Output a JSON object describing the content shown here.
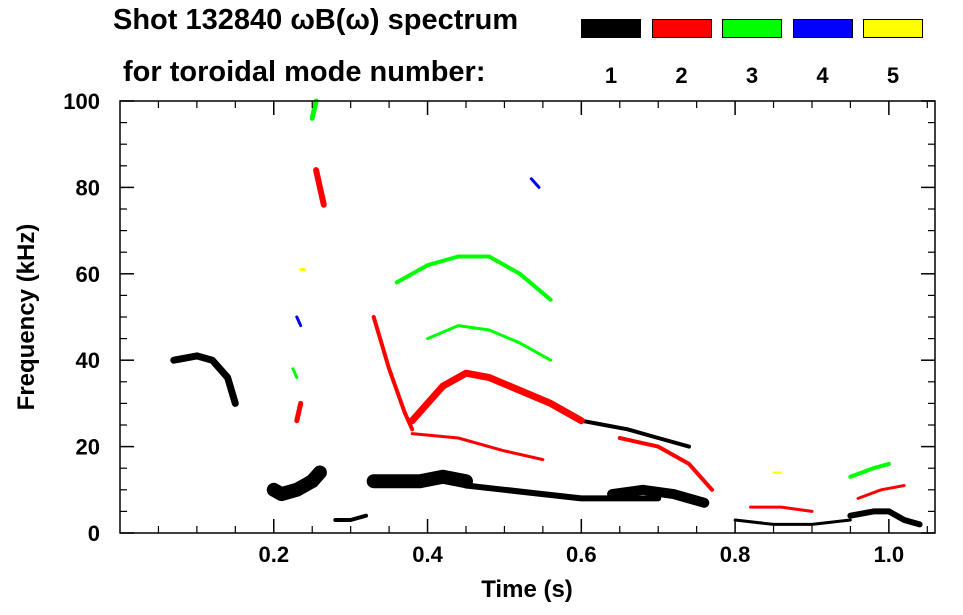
{
  "chart_data": {
    "type": "heatmap",
    "title_line1": "Shot 132840 ωB(ω) spectrum",
    "title_line2": "for toroidal mode number:",
    "xlabel": "Time (s)",
    "ylabel": "Frequency (kHz)",
    "xlim": [
      0.0,
      1.06
    ],
    "ylim": [
      0,
      100
    ],
    "x_ticks": [
      0.2,
      0.4,
      0.6,
      0.8,
      1.0
    ],
    "x_tick_labels": [
      "0.2",
      "0.4",
      "0.6",
      "0.8",
      "1.0"
    ],
    "y_ticks": [
      0,
      20,
      40,
      60,
      80,
      100
    ],
    "y_tick_labels": [
      "0",
      "20",
      "40",
      "60",
      "80",
      "100"
    ],
    "legend": [
      {
        "label": "1",
        "color": "#000000"
      },
      {
        "label": "2",
        "color": "#ff0000"
      },
      {
        "label": "3",
        "color": "#00ff00"
      },
      {
        "label": "4",
        "color": "#0000ff"
      },
      {
        "label": "5",
        "color": "#ffff00"
      }
    ],
    "series": [
      {
        "name": "n=1",
        "color": "#000000",
        "width": 7,
        "points": [
          [
            0.07,
            40
          ],
          [
            0.1,
            41
          ],
          [
            0.12,
            40
          ],
          [
            0.14,
            36
          ],
          [
            0.15,
            30
          ]
        ]
      },
      {
        "name": "n=1",
        "color": "#000000",
        "width": 14,
        "points": [
          [
            0.2,
            10
          ],
          [
            0.21,
            9
          ],
          [
            0.23,
            10
          ],
          [
            0.25,
            12
          ],
          [
            0.26,
            14
          ]
        ]
      },
      {
        "name": "n=1",
        "color": "#000000",
        "width": 4,
        "points": [
          [
            0.28,
            3
          ],
          [
            0.3,
            3
          ],
          [
            0.32,
            4
          ]
        ]
      },
      {
        "name": "n=1",
        "color": "#000000",
        "width": 14,
        "points": [
          [
            0.33,
            12
          ],
          [
            0.36,
            12
          ],
          [
            0.39,
            12
          ],
          [
            0.42,
            13
          ],
          [
            0.45,
            12
          ]
        ]
      },
      {
        "name": "n=1",
        "color": "#000000",
        "width": 6,
        "points": [
          [
            0.45,
            11
          ],
          [
            0.5,
            10
          ],
          [
            0.55,
            9
          ],
          [
            0.6,
            8
          ],
          [
            0.65,
            8
          ],
          [
            0.7,
            8
          ]
        ]
      },
      {
        "name": "n=1",
        "color": "#000000",
        "width": 10,
        "points": [
          [
            0.64,
            9
          ],
          [
            0.68,
            10
          ],
          [
            0.72,
            9
          ],
          [
            0.76,
            7
          ]
        ]
      },
      {
        "name": "n=1",
        "color": "#000000",
        "width": 3,
        "points": [
          [
            0.8,
            3
          ],
          [
            0.85,
            2
          ],
          [
            0.9,
            2
          ],
          [
            0.95,
            3
          ]
        ]
      },
      {
        "name": "n=1",
        "color": "#000000",
        "width": 6,
        "points": [
          [
            0.95,
            4
          ],
          [
            0.98,
            5
          ],
          [
            1.0,
            5
          ],
          [
            1.02,
            3
          ],
          [
            1.04,
            2
          ]
        ]
      },
      {
        "name": "n=1",
        "color": "#000000",
        "width": 4,
        "points": [
          [
            0.6,
            26
          ],
          [
            0.63,
            25
          ],
          [
            0.66,
            24
          ],
          [
            0.7,
            22
          ],
          [
            0.74,
            20
          ]
        ]
      },
      {
        "name": "n=2",
        "color": "#ff0000",
        "width": 5,
        "points": [
          [
            0.23,
            26
          ],
          [
            0.235,
            30
          ]
        ]
      },
      {
        "name": "n=2",
        "color": "#ff0000",
        "width": 6,
        "points": [
          [
            0.255,
            84
          ],
          [
            0.26,
            80
          ],
          [
            0.265,
            76
          ]
        ]
      },
      {
        "name": "n=2",
        "color": "#ff0000",
        "width": 4,
        "points": [
          [
            0.33,
            50
          ],
          [
            0.35,
            38
          ],
          [
            0.37,
            28
          ],
          [
            0.38,
            24
          ]
        ]
      },
      {
        "name": "n=2",
        "color": "#ff0000",
        "width": 7,
        "points": [
          [
            0.38,
            26
          ],
          [
            0.42,
            34
          ],
          [
            0.45,
            37
          ],
          [
            0.48,
            36
          ],
          [
            0.52,
            33
          ],
          [
            0.56,
            30
          ],
          [
            0.6,
            26
          ]
        ]
      },
      {
        "name": "n=2",
        "color": "#ff0000",
        "width": 3,
        "points": [
          [
            0.38,
            23
          ],
          [
            0.44,
            22
          ],
          [
            0.5,
            19
          ],
          [
            0.55,
            17
          ]
        ]
      },
      {
        "name": "n=2",
        "color": "#ff0000",
        "width": 4,
        "points": [
          [
            0.65,
            22
          ],
          [
            0.7,
            20
          ],
          [
            0.74,
            16
          ],
          [
            0.77,
            10
          ]
        ]
      },
      {
        "name": "n=2",
        "color": "#ff0000",
        "width": 3,
        "points": [
          [
            0.82,
            6
          ],
          [
            0.86,
            6
          ],
          [
            0.9,
            5
          ]
        ]
      },
      {
        "name": "n=2",
        "color": "#ff0000",
        "width": 3,
        "points": [
          [
            0.96,
            8
          ],
          [
            0.99,
            10
          ],
          [
            1.02,
            11
          ]
        ]
      },
      {
        "name": "n=3",
        "color": "#00ff00",
        "width": 5,
        "points": [
          [
            0.25,
            96
          ],
          [
            0.255,
            100
          ]
        ]
      },
      {
        "name": "n=3",
        "color": "#00ff00",
        "width": 4,
        "points": [
          [
            0.36,
            58
          ],
          [
            0.4,
            62
          ],
          [
            0.44,
            64
          ],
          [
            0.48,
            64
          ],
          [
            0.52,
            60
          ],
          [
            0.56,
            54
          ]
        ]
      },
      {
        "name": "n=3",
        "color": "#00ff00",
        "width": 3,
        "points": [
          [
            0.4,
            45
          ],
          [
            0.44,
            48
          ],
          [
            0.48,
            47
          ],
          [
            0.52,
            44
          ],
          [
            0.56,
            40
          ]
        ]
      },
      {
        "name": "n=3",
        "color": "#00ff00",
        "width": 4,
        "points": [
          [
            0.95,
            13
          ],
          [
            0.98,
            15
          ],
          [
            1.0,
            16
          ]
        ]
      },
      {
        "name": "n=3",
        "color": "#00ff00",
        "width": 3,
        "points": [
          [
            0.225,
            38
          ],
          [
            0.23,
            36
          ]
        ]
      },
      {
        "name": "n=4",
        "color": "#0000ff",
        "width": 3,
        "points": [
          [
            0.535,
            82
          ],
          [
            0.545,
            80
          ]
        ]
      },
      {
        "name": "n=4",
        "color": "#0000ff",
        "width": 3,
        "points": [
          [
            0.23,
            50
          ],
          [
            0.235,
            48
          ]
        ]
      },
      {
        "name": "n=5",
        "color": "#ffff00",
        "width": 3,
        "points": [
          [
            0.235,
            61
          ],
          [
            0.24,
            61
          ]
        ]
      },
      {
        "name": "n=5",
        "color": "#ffff00",
        "width": 2,
        "points": [
          [
            0.85,
            14
          ],
          [
            0.86,
            14
          ]
        ]
      }
    ]
  }
}
